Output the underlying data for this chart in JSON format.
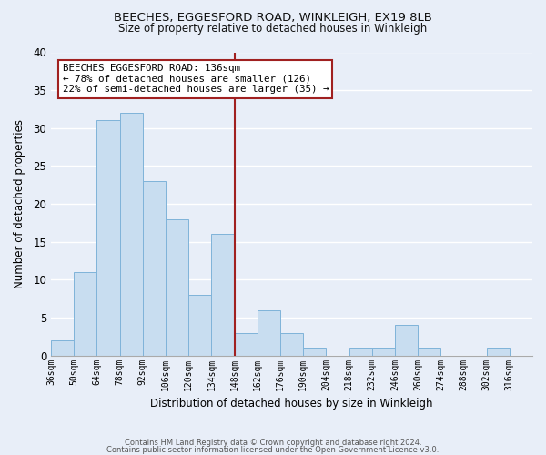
{
  "title_line1": "BEECHES, EGGESFORD ROAD, WINKLEIGH, EX19 8LB",
  "title_line2": "Size of property relative to detached houses in Winkleigh",
  "xlabel": "Distribution of detached houses by size in Winkleigh",
  "ylabel": "Number of detached properties",
  "bin_labels": [
    "36sqm",
    "50sqm",
    "64sqm",
    "78sqm",
    "92sqm",
    "106sqm",
    "120sqm",
    "134sqm",
    "148sqm",
    "162sqm",
    "176sqm",
    "190sqm",
    "204sqm",
    "218sqm",
    "232sqm",
    "246sqm",
    "260sqm",
    "274sqm",
    "288sqm",
    "302sqm",
    "316sqm"
  ],
  "bar_values": [
    2,
    11,
    31,
    32,
    23,
    18,
    8,
    16,
    3,
    6,
    3,
    1,
    0,
    1,
    1,
    4,
    1,
    0,
    0,
    1,
    0
  ],
  "bar_color": "#c8ddf0",
  "bar_edge_color": "#7fb3d9",
  "highlight_bar_index": 7,
  "vline_color": "#a02020",
  "annotation_title": "BEECHES EGGESFORD ROAD: 136sqm",
  "annotation_line1": "← 78% of detached houses are smaller (126)",
  "annotation_line2": "22% of semi-detached houses are larger (35) →",
  "annotation_box_edge": "#a02020",
  "annotation_box_face": "#ffffff",
  "ylim": [
    0,
    40
  ],
  "yticks": [
    0,
    5,
    10,
    15,
    20,
    25,
    30,
    35,
    40
  ],
  "background_color": "#e8eef8",
  "grid_color": "#ffffff",
  "footer_line1": "Contains HM Land Registry data © Crown copyright and database right 2024.",
  "footer_line2": "Contains public sector information licensed under the Open Government Licence v3.0."
}
